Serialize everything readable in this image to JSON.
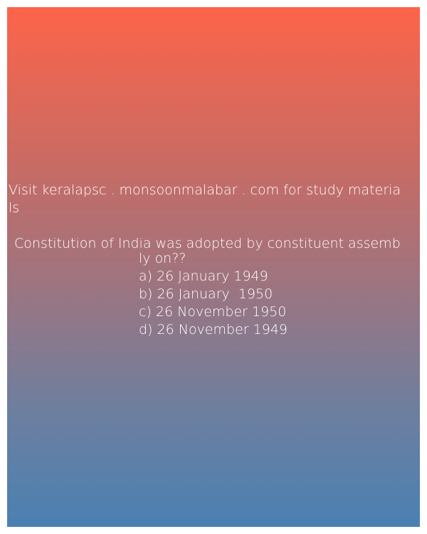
{
  "promo": {
    "line1": "Visit keralapsc . monsoonmalabar . com for study materia",
    "line2": "ls"
  },
  "question": {
    "line1": "Constitution of India was adopted by constituent assemb",
    "line2": "ly on??"
  },
  "options": {
    "a": "a) 26 January 1949",
    "b": "b) 26 January  1950",
    "c": "c) 26 November 1950",
    "d": "d) 26 November 1949"
  },
  "colors": {
    "gradient_top": "#fd644a",
    "gradient_bottom": "#4a80b2",
    "text": "#ffffff",
    "border": "#ffffff"
  }
}
